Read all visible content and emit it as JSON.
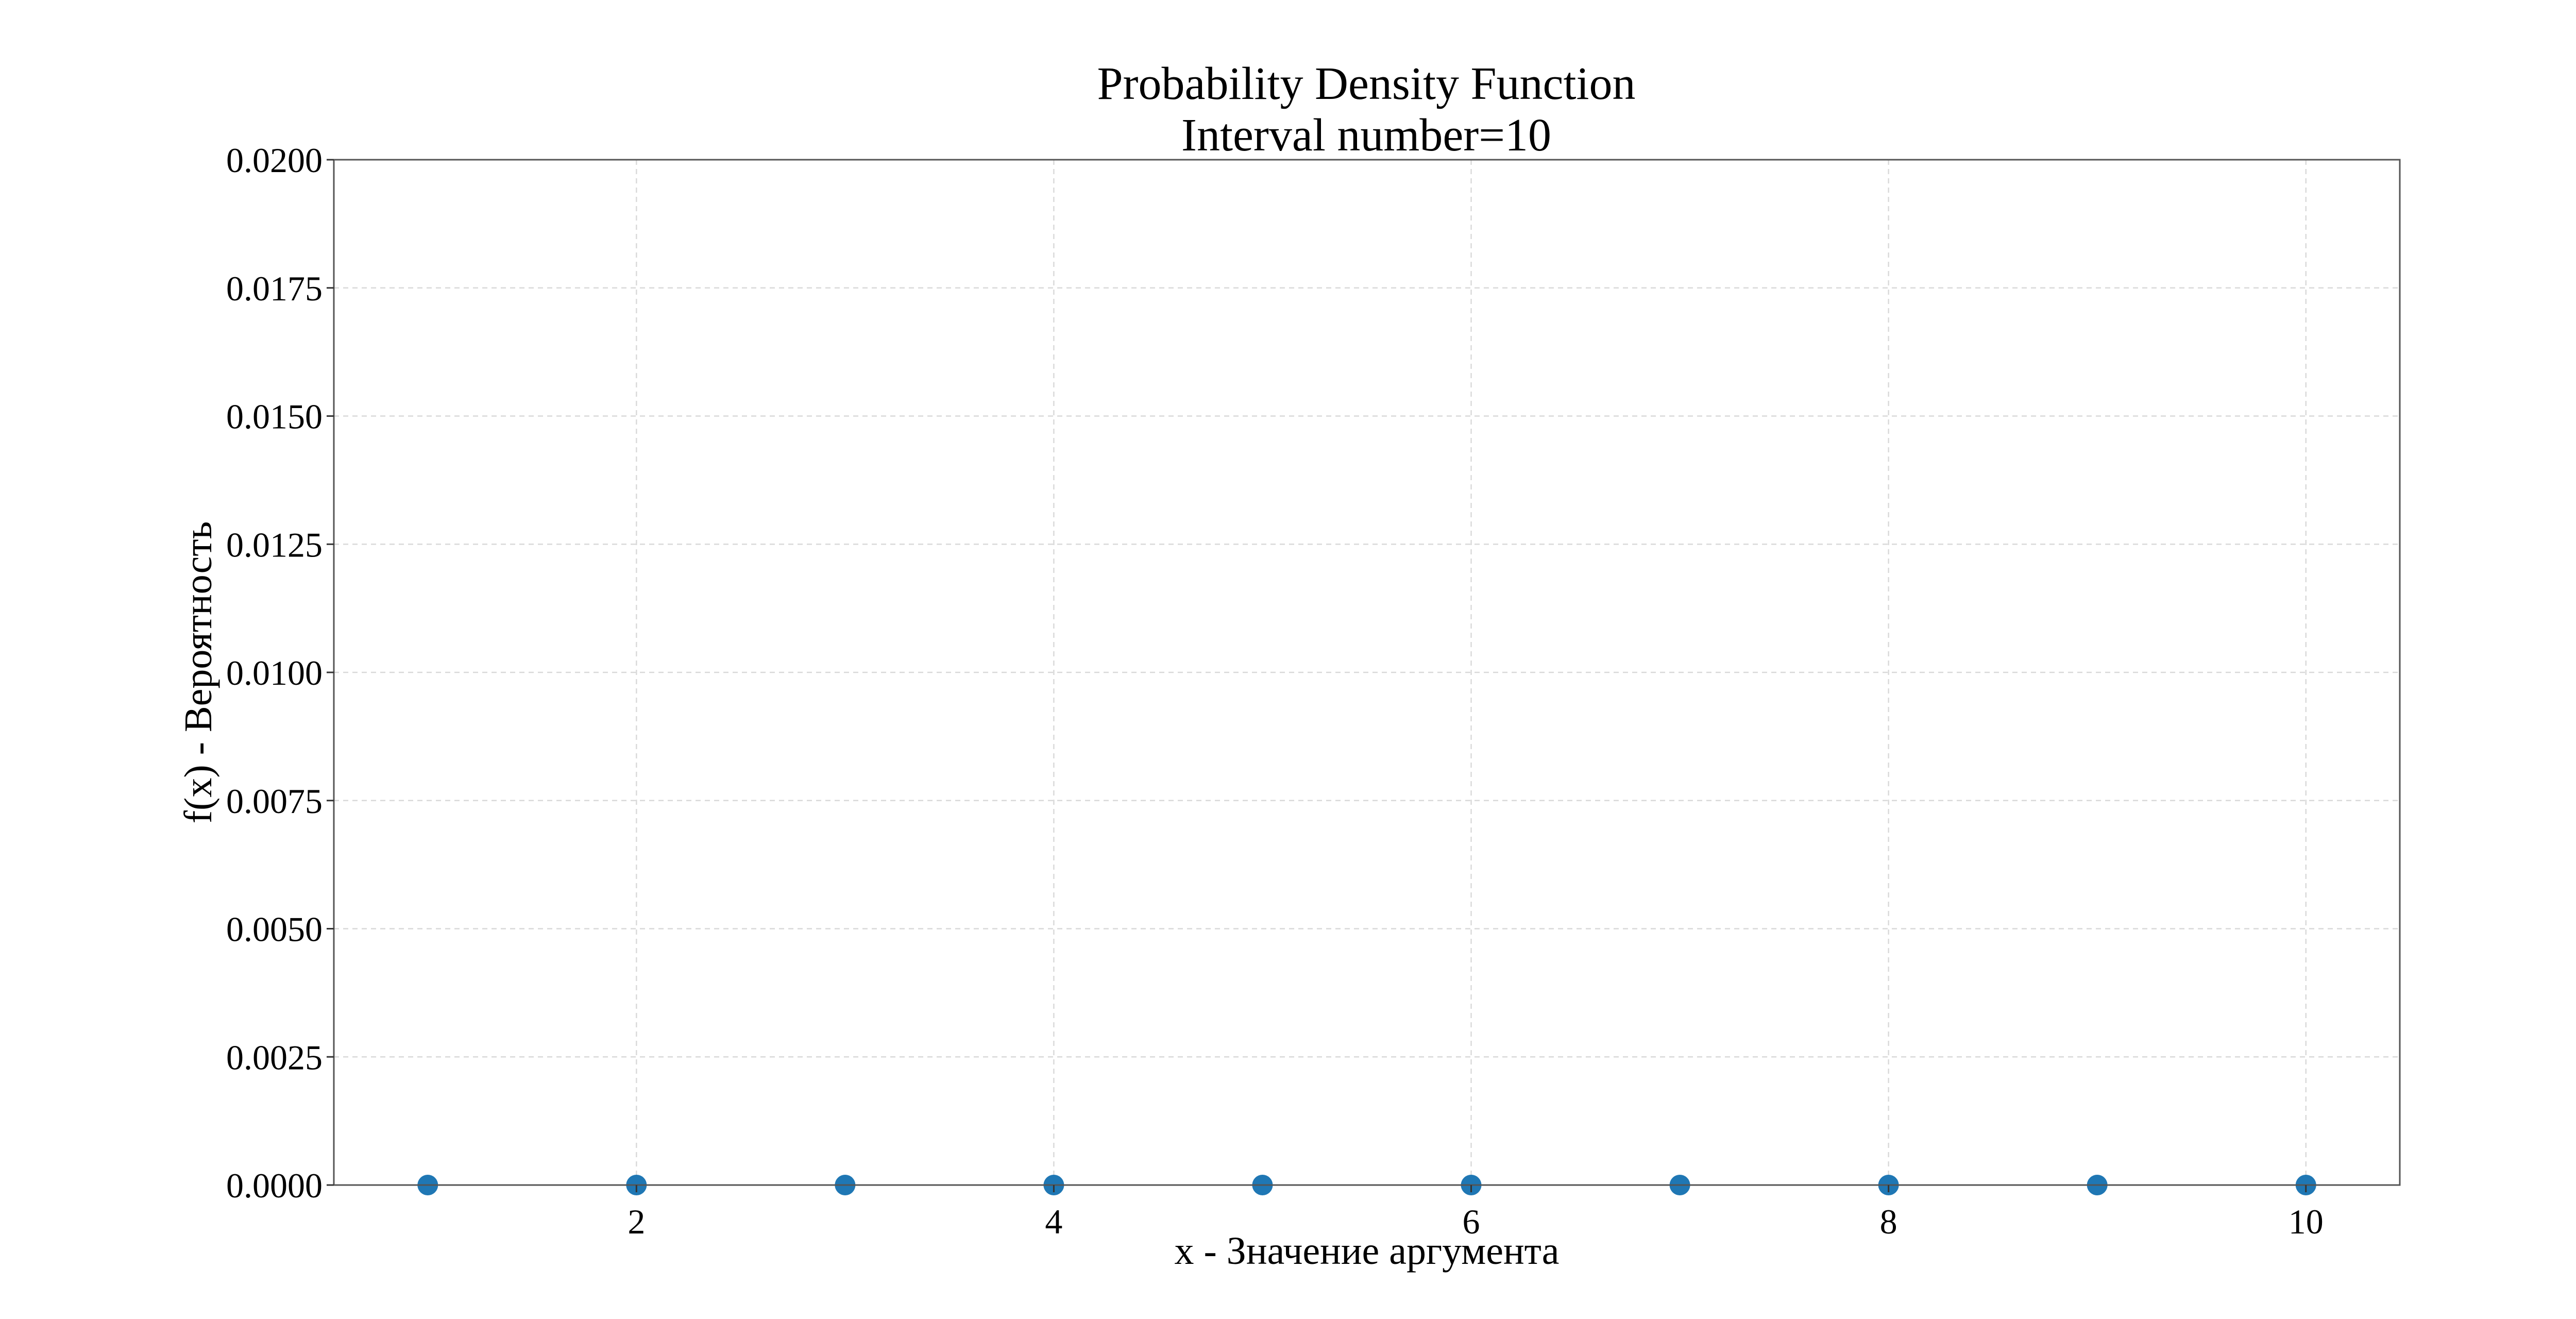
{
  "chart_data": {
    "type": "scatter",
    "title": "Probability Density Function",
    "subtitle": "Interval number=10",
    "xlabel": "x - Значение аргумента",
    "ylabel": "f(x) - Вероятность",
    "xlim": [
      0.55,
      10.45
    ],
    "ylim": [
      0,
      0.02
    ],
    "x_ticks": [
      2,
      4,
      6,
      8,
      10
    ],
    "x_tick_labels": [
      "2",
      "4",
      "6",
      "8",
      "10"
    ],
    "y_ticks": [
      0,
      0.0025,
      0.005,
      0.0075,
      0.01,
      0.0125,
      0.015,
      0.0175,
      0.02
    ],
    "y_tick_labels": [
      "0.0000",
      "0.0025",
      "0.0050",
      "0.0075",
      "0.0100",
      "0.0125",
      "0.0150",
      "0.0175",
      "0.0200"
    ],
    "grid": true,
    "legend": "none",
    "series": [
      {
        "color": "#1f77b4",
        "x": [
          1,
          2,
          3,
          4,
          5,
          6,
          7,
          8,
          9,
          10
        ],
        "y": [
          0,
          0,
          0,
          0,
          0,
          0,
          0,
          0,
          0,
          0
        ]
      }
    ]
  }
}
